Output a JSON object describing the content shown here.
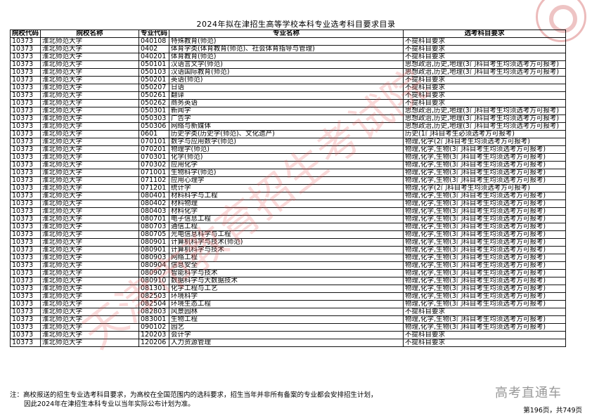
{
  "title": "2024年拟在津招生高等学校本科专业选考科目要求目录",
  "headers": [
    "院校代码",
    "院校名称",
    "专业代码",
    "专业名称",
    "选考科目要求"
  ],
  "rows": [
    [
      "10373",
      "淮北师范大学",
      "040108",
      "特殊教育(师范)",
      "不提科目要求"
    ],
    [
      "10373",
      "淮北师范大学",
      "0402",
      "体育学类(体育教育(师范)、社会体育指导与管理)",
      "不提科目要求"
    ],
    [
      "10373",
      "淮北师范大学",
      "040201",
      "体育教育(师范)",
      "不提科目要求"
    ],
    [
      "10373",
      "淮北师范大学",
      "050101",
      "汉语言文学(师范)",
      "思想政治,历史,地理(3门科目考生均须选考方可报考)"
    ],
    [
      "10373",
      "淮北师范大学",
      "050103",
      "汉语国际教育(师范)",
      "思想政治,历史,地理(3门科目考生均须选考方可报考)"
    ],
    [
      "10373",
      "淮北师范大学",
      "050201",
      "英语(师范)",
      "不提科目要求"
    ],
    [
      "10373",
      "淮北师范大学",
      "050207",
      "日语",
      "不提科目要求"
    ],
    [
      "10373",
      "淮北师范大学",
      "050261",
      "翻译",
      "不提科目要求"
    ],
    [
      "10373",
      "淮北师范大学",
      "050262",
      "商务英语",
      "不提科目要求"
    ],
    [
      "10373",
      "淮北师范大学",
      "050301",
      "新闻学",
      "思想政治,历史,地理(3门科目考生均须选考方可报考)"
    ],
    [
      "10373",
      "淮北师范大学",
      "050303",
      "广告学",
      "思想政治,历史,地理(3门科目考生均须选考方可报考)"
    ],
    [
      "10373",
      "淮北师范大学",
      "050306",
      "网络与新媒体",
      "思想政治,历史,地理(3门科目考生均须选考方可报考)"
    ],
    [
      "10373",
      "淮北师范大学",
      "0601",
      "历史学类(历史学(师范)、文化遗产)",
      "历史(1门科目考生必须选考方可报考)"
    ],
    [
      "10373",
      "淮北师范大学",
      "070101",
      "数学与应用数学(师范)",
      "物理,化学(2门科目考生均须选考方可报考)"
    ],
    [
      "10373",
      "淮北师范大学",
      "070201",
      "物理学(师范)",
      "物理,化学,生物(3门科目考生均须选考方可报考)"
    ],
    [
      "10373",
      "淮北师范大学",
      "070301",
      "化学(师范)",
      "物理,化学,生物(3门科目考生均须选考方可报考)"
    ],
    [
      "10373",
      "淮北师范大学",
      "070302",
      "应用化学",
      "物理,化学,生物(3门科目考生均须选考方可报考)"
    ],
    [
      "10373",
      "淮北师范大学",
      "071001",
      "生物科学(师范)",
      "物理,化学,生物(3门科目考生均须选考方可报考)"
    ],
    [
      "10373",
      "淮北师范大学",
      "071102",
      "应用心理学",
      "物理,化学,生物(3门科目考生均须选考方可报考)"
    ],
    [
      "10373",
      "淮北师范大学",
      "071201",
      "统计学",
      "物理,化学(2门科目考生均须选考方可报考)"
    ],
    [
      "10373",
      "淮北师范大学",
      "080401",
      "材料科学与工程",
      "物理,化学,生物(3门科目考生均须选考方可报考)"
    ],
    [
      "10373",
      "淮北师范大学",
      "080402",
      "材料物理",
      "物理,化学,生物(3门科目考生均须选考方可报考)"
    ],
    [
      "10373",
      "淮北师范大学",
      "080403",
      "材料化学",
      "物理,化学,生物(3门科目考生均须选考方可报考)"
    ],
    [
      "10373",
      "淮北师范大学",
      "080701",
      "电子信息工程",
      "物理,化学,生物(3门科目考生均须选考方可报考)"
    ],
    [
      "10373",
      "淮北师范大学",
      "080703",
      "通信工程",
      "物理,化学,生物(3门科目考生均须选考方可报考)"
    ],
    [
      "10373",
      "淮北师范大学",
      "080705",
      "光电信息科学与工程",
      "物理,化学,生物(3门科目考生均须选考方可报考)"
    ],
    [
      "10373",
      "淮北师范大学",
      "080901",
      "计算机科学与技术(师范)",
      "物理,化学,生物(3门科目考生均须选考方可报考)"
    ],
    [
      "10373",
      "淮北师范大学",
      "080901",
      "计算机科学与技术",
      "物理,化学,生物(3门科目考生均须选考方可报考)"
    ],
    [
      "10373",
      "淮北师范大学",
      "080903",
      "网络工程",
      "物理,化学,生物(3门科目考生均须选考方可报考)"
    ],
    [
      "10373",
      "淮北师范大学",
      "080904",
      "信息安全",
      "物理,化学,生物(3门科目考生均须选考方可报考)"
    ],
    [
      "10373",
      "淮北师范大学",
      "080907",
      "智能科学与技术",
      "物理,化学,生物(3门科目考生均须选考方可报考)"
    ],
    [
      "10373",
      "淮北师范大学",
      "080910",
      "数据科学与大数据技术",
      "物理,化学,生物(3门科目考生均须选考方可报考)"
    ],
    [
      "10373",
      "淮北师范大学",
      "081301",
      "化学工程与工艺",
      "物理,化学,生物(3门科目考生均须选考方可报考)"
    ],
    [
      "10373",
      "淮北师范大学",
      "082503",
      "环境科学",
      "物理,化学,生物(3门科目考生均须选考方可报考)"
    ],
    [
      "10373",
      "淮北师范大学",
      "082504",
      "环境生态工程",
      "物理,化学,生物(3门科目考生均须选考方可报考)"
    ],
    [
      "10373",
      "淮北师范大学",
      "082803",
      "风景园林",
      "不提科目要求"
    ],
    [
      "10373",
      "淮北师范大学",
      "083001",
      "生物工程",
      "物理,化学,生物(3门科目考生均须选考方可报考)"
    ],
    [
      "10373",
      "淮北师范大学",
      "090102",
      "园艺",
      "物理,化学,生物(3门科目考生均须选考方可报考)"
    ],
    [
      "10373",
      "淮北师范大学",
      "120203",
      "会计学",
      "不提科目要求"
    ],
    [
      "10373",
      "淮北师范大学",
      "120206",
      "人力资源管理",
      "不提科目要求"
    ]
  ],
  "note": {
    "line1": "注：高校报送的招生专业选考科目要求，为高校在全国范围内的选科要求，招生当年并非所有备案的专业都会安排招生计划，",
    "line2": "因此2024年在津招生本科专业以当年实际公布计划为准。"
  },
  "brand_watermark": "高考直通车",
  "page_info": "第196页，共749页",
  "watermark_text": "天津市教育招生考试院",
  "colors": {
    "watermark": "#e65050",
    "seal": "#c83c3c"
  }
}
